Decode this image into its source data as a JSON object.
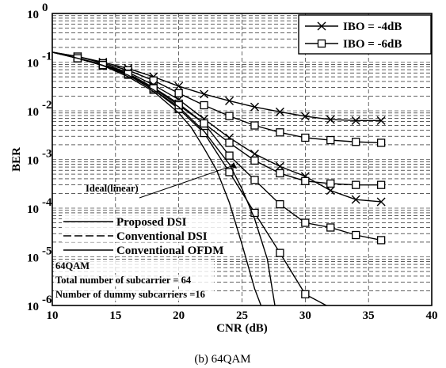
{
  "chart_data": {
    "type": "line",
    "title": "",
    "caption": "(b) 64QAM",
    "xlabel": "CNR (dB)",
    "ylabel": "BER",
    "xlim": [
      10,
      40
    ],
    "ylim_log10": [
      -6,
      0
    ],
    "y_scale": "log",
    "grid": true,
    "grid_style": "dashed",
    "x_tick_labels": [
      "10",
      "15",
      "20",
      "25",
      "30",
      "35",
      "40"
    ],
    "y_tick_labels": [
      {
        "base": "10",
        "exp": "0"
      },
      {
        "base": "10",
        "exp": "-1"
      },
      {
        "base": "10",
        "exp": "-2"
      },
      {
        "base": "10",
        "exp": "-3"
      },
      {
        "base": "10",
        "exp": "-4"
      },
      {
        "base": "10",
        "exp": "-5"
      },
      {
        "base": "10",
        "exp": "-6"
      }
    ],
    "marker_legend": {
      "placement": "top-right",
      "entries": [
        {
          "label": "IBO = -4dB",
          "marker": "x"
        },
        {
          "label": "IBO = -6dB",
          "marker": "square"
        }
      ]
    },
    "line_legend": {
      "placement": "bottom-left",
      "entries": [
        {
          "label": "Proposed DSI"
        },
        {
          "label": "Conventional DSI"
        },
        {
          "label": "Conventional OFDM"
        }
      ]
    },
    "notes": [
      "64QAM",
      "Total number of subcarrier = 64",
      "Number of dummy subcarriers =16"
    ],
    "annotation": {
      "text": "Ideal(linear)",
      "points_to": {
        "x": 24.6,
        "y": 0.00065
      }
    },
    "series": [
      {
        "marker": "x",
        "x": [
          10,
          12,
          14,
          16,
          18,
          20,
          22,
          24,
          26,
          28,
          30,
          32,
          34,
          36
        ],
        "y": [
          0.16,
          0.13,
          0.1,
          0.074,
          0.05,
          0.032,
          0.022,
          0.016,
          0.012,
          0.0095,
          0.0077,
          0.0066,
          0.0063,
          0.0063
        ]
      },
      {
        "marker": "square",
        "x": [
          10,
          12,
          14,
          16,
          18,
          20,
          22,
          24,
          26,
          28,
          30,
          32,
          34,
          36
        ],
        "y": [
          0.16,
          0.13,
          0.095,
          0.068,
          0.042,
          0.023,
          0.013,
          0.0078,
          0.005,
          0.0036,
          0.0028,
          0.0025,
          0.0023,
          0.0022
        ]
      },
      {
        "marker": "x",
        "x": [
          10,
          12,
          14,
          16,
          18,
          20,
          22,
          24,
          26,
          28,
          30,
          32,
          34,
          36
        ],
        "y": [
          0.16,
          0.12,
          0.09,
          0.062,
          0.034,
          0.017,
          0.0068,
          0.0028,
          0.0013,
          0.00072,
          0.00045,
          0.00023,
          0.00015,
          0.000135
        ]
      },
      {
        "marker": "square",
        "x": [
          10,
          12,
          14,
          16,
          18,
          20,
          22,
          24,
          26,
          28,
          30,
          32,
          34,
          36
        ],
        "y": [
          0.16,
          0.12,
          0.088,
          0.058,
          0.03,
          0.014,
          0.0055,
          0.0022,
          0.00095,
          0.00052,
          0.00036,
          0.00032,
          0.0003,
          0.0003
        ]
      },
      {
        "marker": "square",
        "x": [
          10,
          12,
          14,
          16,
          18,
          20,
          22,
          24,
          26,
          28,
          30,
          32,
          34,
          36
        ],
        "y": [
          0.16,
          0.12,
          0.085,
          0.055,
          0.027,
          0.011,
          0.0035,
          0.00055,
          8e-05,
          1.2e-05,
          1.7e-06,
          9e-07,
          6e-07,
          4e-07
        ]
      },
      {
        "marker": "square",
        "x": [
          10,
          12,
          14,
          16,
          18,
          20,
          22,
          24,
          26,
          28,
          30,
          32,
          34,
          36
        ],
        "y": [
          0.16,
          0.12,
          0.087,
          0.057,
          0.029,
          0.013,
          0.0055,
          0.0012,
          0.00038,
          0.00012,
          5e-05,
          4e-05,
          2.8e-05,
          2.2e-05
        ]
      },
      {
        "marker": "none",
        "x": [
          10,
          12,
          14,
          16,
          18,
          20,
          21,
          22,
          23,
          24,
          25,
          26,
          26.5
        ],
        "y": [
          0.16,
          0.12,
          0.085,
          0.05,
          0.025,
          0.009,
          0.0045,
          0.0017,
          0.0006,
          0.00013,
          1.8e-05,
          2.2e-06,
          1e-06
        ]
      },
      {
        "marker": "none",
        "x": [
          10,
          12,
          14,
          16,
          18,
          20,
          22,
          24,
          25,
          26,
          27,
          27.6
        ],
        "y": [
          0.16,
          0.12,
          0.086,
          0.054,
          0.027,
          0.012,
          0.0038,
          0.0008,
          0.00025,
          6e-05,
          9e-06,
          1e-06
        ]
      }
    ]
  }
}
